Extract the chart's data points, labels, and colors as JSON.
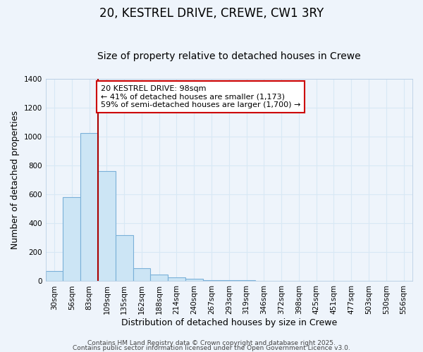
{
  "title": "20, KESTREL DRIVE, CREWE, CW1 3RY",
  "subtitle": "Size of property relative to detached houses in Crewe",
  "xlabel": "Distribution of detached houses by size in Crewe",
  "ylabel": "Number of detached properties",
  "bar_color": "#cce5f5",
  "bar_edge_color": "#7ab0d8",
  "categories": [
    "30sqm",
    "56sqm",
    "83sqm",
    "109sqm",
    "135sqm",
    "162sqm",
    "188sqm",
    "214sqm",
    "240sqm",
    "267sqm",
    "293sqm",
    "319sqm",
    "346sqm",
    "372sqm",
    "398sqm",
    "425sqm",
    "451sqm",
    "477sqm",
    "503sqm",
    "530sqm",
    "556sqm"
  ],
  "values": [
    70,
    580,
    1025,
    760,
    320,
    90,
    45,
    25,
    15,
    5,
    5,
    5,
    0,
    0,
    0,
    0,
    0,
    0,
    0,
    0,
    0
  ],
  "ylim": [
    0,
    1400
  ],
  "yticks": [
    0,
    200,
    400,
    600,
    800,
    1000,
    1200,
    1400
  ],
  "vline_color": "#aa0000",
  "annotation_line1": "20 KESTREL DRIVE: 98sqm",
  "annotation_line2": "← 41% of detached houses are smaller (1,173)",
  "annotation_line3": "59% of semi-detached houses are larger (1,700) →",
  "footer1": "Contains HM Land Registry data © Crown copyright and database right 2025.",
  "footer2": "Contains public sector information licensed under the Open Government Licence v3.0.",
  "background_color": "#eef4fb",
  "grid_color": "#d8e8f5",
  "title_fontsize": 12,
  "subtitle_fontsize": 10,
  "axis_label_fontsize": 9,
  "tick_fontsize": 7.5,
  "annotation_fontsize": 8,
  "footer_fontsize": 6.5
}
